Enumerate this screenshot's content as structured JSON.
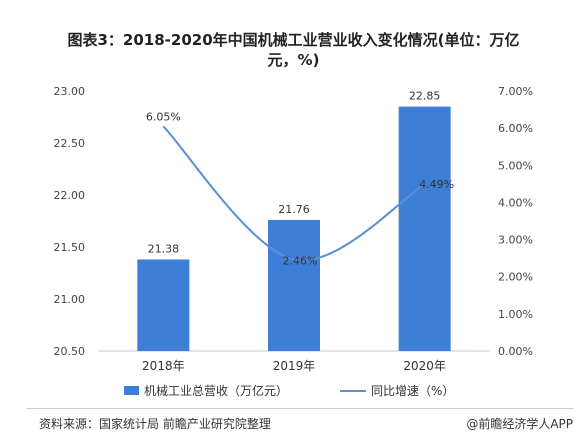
{
  "title": "图表3：2018-2020年中国机械工业营业收入变化情况(单位：万亿\n元，%)",
  "footer": {
    "source": "资料来源：国家统计局 前瞻产业研究院整理",
    "credit": "@前瞻经济学人APP"
  },
  "colors": {
    "bar": "#3d7fd6",
    "line": "#5b8fd4",
    "grid": "#e0e0e0"
  },
  "chart_data": {
    "type": "bar",
    "categories": [
      "2018年",
      "2019年",
      "2020年"
    ],
    "series": [
      {
        "name": "机械工业总营收（万亿元）",
        "type": "bar",
        "axis": "left",
        "values": [
          21.38,
          21.76,
          22.85
        ],
        "labels": [
          "21.38",
          "21.76",
          "22.85"
        ]
      },
      {
        "name": "同比增速（%）",
        "type": "line",
        "axis": "right",
        "values": [
          6.05,
          2.46,
          4.49
        ],
        "labels": [
          "6.05%",
          "2.46%",
          "4.49%"
        ]
      }
    ],
    "y_left": {
      "min": 20.5,
      "max": 23.0,
      "ticks": [
        "20.50",
        "21.00",
        "21.50",
        "22.00",
        "22.50",
        "23.00"
      ]
    },
    "y_right": {
      "min": 0,
      "max": 7,
      "ticks": [
        "0.00%",
        "1.00%",
        "2.00%",
        "3.00%",
        "4.00%",
        "5.00%",
        "6.00%",
        "7.00%"
      ]
    },
    "legend_position": "bottom",
    "grid": false
  }
}
